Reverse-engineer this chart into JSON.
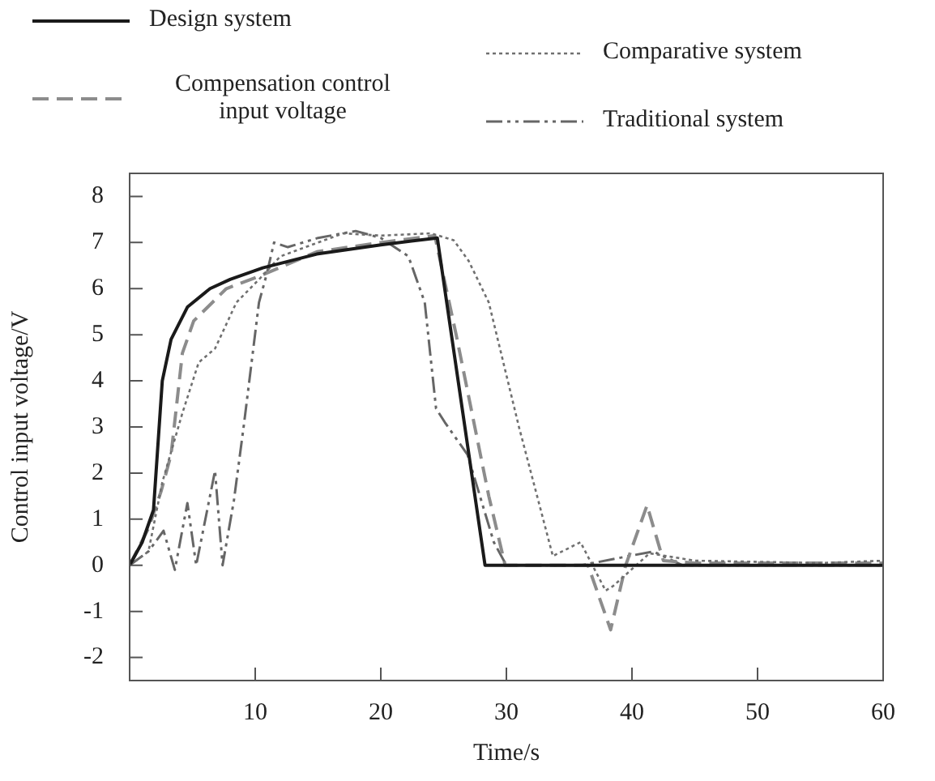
{
  "chart_data": {
    "type": "line",
    "xlabel": "Time/s",
    "ylabel": "Control input voltage/V",
    "xlim": [
      0,
      60
    ],
    "xticks": [
      10,
      20,
      30,
      40,
      50,
      60
    ],
    "ylim": [
      -2.5,
      8.5
    ],
    "yticks": [
      -2,
      -1,
      0,
      1,
      2,
      3,
      4,
      5,
      6,
      7,
      8
    ],
    "grid": false,
    "legend": "top",
    "marker": "none",
    "series": [
      {
        "name": "Design system",
        "color": "#1a1a1a",
        "line_style": "solid",
        "x": [
          0,
          1,
          1.9,
          2.3,
          2.6,
          3.3,
          4.6,
          6.4,
          8,
          10.6,
          14.9,
          20,
          24.5,
          28.3,
          60
        ],
        "values": [
          0,
          0.5,
          1.2,
          2.8,
          4.0,
          4.9,
          5.6,
          6.0,
          6.2,
          6.45,
          6.75,
          6.95,
          7.1,
          0,
          0
        ]
      },
      {
        "name": "Comparative system",
        "color": "#707070",
        "line_style": "dotted",
        "x": [
          0,
          1.5,
          2.6,
          4.2,
          5.5,
          6.8,
          8.5,
          10.3,
          12,
          15,
          17,
          20,
          24,
          25.8,
          27,
          28.6,
          31,
          33.7,
          35.9,
          37.9,
          38.5,
          41.4,
          45,
          55,
          60
        ],
        "values": [
          0,
          0.3,
          1.8,
          3.3,
          4.4,
          4.7,
          5.7,
          6.2,
          6.7,
          7.0,
          7.2,
          7.15,
          7.2,
          7.05,
          6.6,
          5.7,
          3.0,
          0.2,
          0.5,
          -0.55,
          -0.45,
          0.26,
          0.1,
          0.05,
          0.1
        ]
      },
      {
        "name": "Compensation control input voltage",
        "color": "#8c8c8c",
        "line_style": "dashed",
        "x": [
          0,
          1.5,
          2.5,
          3.3,
          4.2,
          5.1,
          7.7,
          10.6,
          14.9,
          20,
          24.3,
          26,
          28.6,
          29.9,
          33,
          36.5,
          38.3,
          39.5,
          41.2,
          42.5,
          45,
          60
        ],
        "values": [
          0,
          0.8,
          1.6,
          2.4,
          4.6,
          5.3,
          6.0,
          6.3,
          6.8,
          7.0,
          7.15,
          5.0,
          1.5,
          0,
          0,
          0,
          -1.4,
          0,
          1.3,
          0.1,
          0.05,
          0.05
        ]
      },
      {
        "name": "Traditional system",
        "color": "#666666",
        "line_style": "dashdot",
        "x": [
          0,
          1.5,
          2.7,
          3.6,
          4.6,
          5.3,
          6.8,
          7.4,
          8.3,
          9.1,
          10.3,
          10.9,
          11.5,
          12.6,
          15,
          18,
          20,
          22.2,
          23.5,
          24.4,
          25.1,
          26.9,
          29,
          30,
          36,
          38.8,
          41.7,
          44,
          60
        ],
        "values": [
          0,
          0.3,
          0.75,
          -0.1,
          1.35,
          0,
          2.05,
          0,
          1.4,
          3.05,
          5.7,
          6.3,
          7.0,
          6.9,
          7.1,
          7.25,
          7.1,
          6.7,
          5.7,
          3.4,
          3.1,
          2.4,
          0.5,
          0,
          0,
          0.15,
          0.3,
          0,
          0
        ]
      }
    ]
  }
}
